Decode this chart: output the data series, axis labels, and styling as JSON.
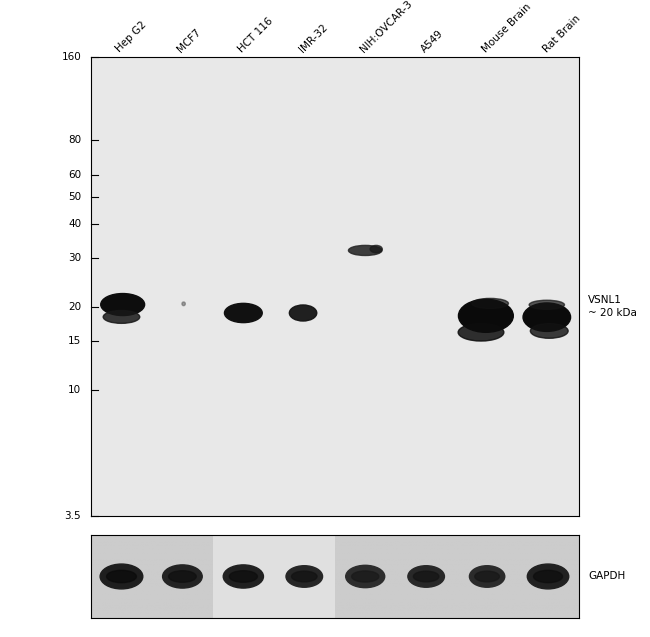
{
  "figure_width": 6.5,
  "figure_height": 6.37,
  "bg_color": "#ffffff",
  "sample_labels": [
    "Hep G2",
    "MCF7",
    "HCT 116",
    "IMR-32",
    "NIH:OVCAR-3",
    "A549",
    "Mouse Brain",
    "Rat Brain"
  ],
  "mw_markers": [
    160,
    80,
    60,
    50,
    40,
    30,
    20,
    15,
    10,
    3.5
  ],
  "right_label": "VSNL1\n~ 20 kDa",
  "gapdh_label": "GAPDH",
  "main_bg": 0.91,
  "gapdh_bg": 0.8,
  "lane_x": [
    0.5,
    1.5,
    2.5,
    3.5,
    4.5,
    5.5,
    6.5,
    7.5
  ],
  "n_lanes": 8
}
